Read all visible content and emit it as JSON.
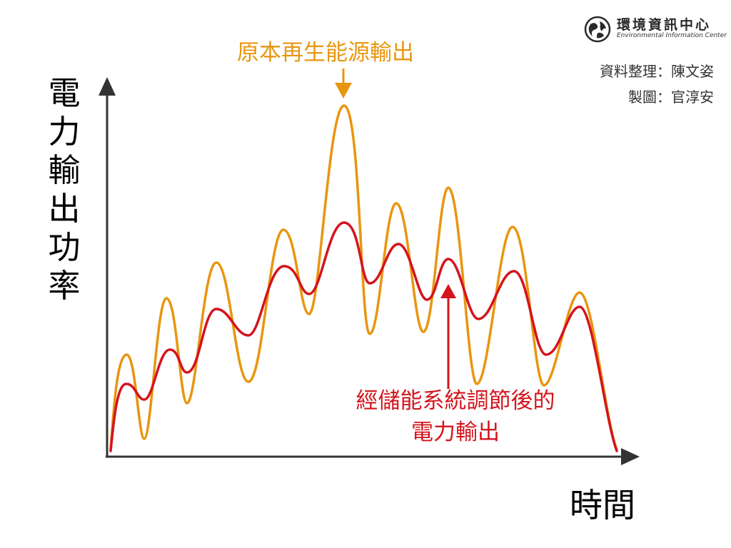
{
  "header": {
    "org_name": "環境資訊中心",
    "org_subtitle": "Environmental Information Center",
    "credit_data": "資料整理：陳文姿",
    "credit_drawing": "製圖：官淳安"
  },
  "axes": {
    "y_label": "電力輸出功率",
    "x_label": "時間"
  },
  "labels": {
    "original_output": "原本再生能源輸出",
    "regulated_output_line1": "經儲能系統調節後的",
    "regulated_output_line2": "電力輸出"
  },
  "colors": {
    "orange": "#e8960f",
    "red": "#d4141c",
    "axis": "#333333"
  },
  "icons": {
    "logo": "globe-icon"
  }
}
